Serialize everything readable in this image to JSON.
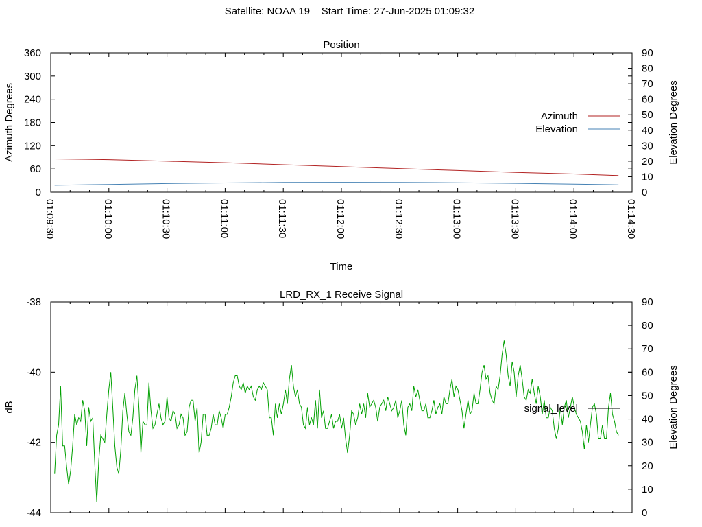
{
  "page_title": {
    "satellite": "Satellite: NOAA 19",
    "start_time": "Start Time: 27-Jun-2025 01:09:32"
  },
  "chart_data": [
    {
      "type": "line",
      "title": "Position",
      "xlabel": "Time",
      "ylabel": "Azimuth Degrees",
      "y2label": "Elevation Degrees",
      "xlim": [
        "01:09:30",
        "01:14:30"
      ],
      "ylim": [
        0,
        360
      ],
      "y2lim": [
        0,
        90
      ],
      "x_ticks": [
        "01:09:30",
        "01:10:00",
        "01:10:30",
        "01:11:00",
        "01:11:30",
        "01:12:00",
        "01:12:30",
        "01:13:00",
        "01:13:30",
        "01:14:00",
        "01:14:30"
      ],
      "y_ticks": [
        0,
        60,
        120,
        180,
        240,
        300,
        360
      ],
      "y2_ticks": [
        0,
        10,
        20,
        30,
        40,
        50,
        60,
        70,
        80,
        90
      ],
      "legend_position": "right",
      "grid": false,
      "series": [
        {
          "name": "Azimuth",
          "axis": "left",
          "color": "#b22222",
          "x": [
            "01:09:32",
            "01:10:00",
            "01:10:30",
            "01:11:00",
            "01:11:30",
            "01:12:00",
            "01:12:30",
            "01:13:00",
            "01:13:30",
            "01:14:00",
            "01:14:23"
          ],
          "y": [
            86,
            84,
            80,
            76,
            71,
            66,
            61,
            56,
            51,
            47,
            43
          ]
        },
        {
          "name": "Elevation",
          "axis": "right",
          "color": "#4682b4",
          "x": [
            "01:09:32",
            "01:10:00",
            "01:10:30",
            "01:11:00",
            "01:11:30",
            "01:12:00",
            "01:12:30",
            "01:13:00",
            "01:13:30",
            "01:14:00",
            "01:14:23"
          ],
          "y": [
            4.5,
            5,
            5.6,
            6,
            6.3,
            6.4,
            6.3,
            6.1,
            5.7,
            5.2,
            4.8
          ]
        }
      ]
    },
    {
      "type": "line",
      "title": "LRD_RX_1 Receive Signal",
      "ylabel": "dB",
      "y2label": "Elevation Degrees",
      "xlim": [
        "01:09:30",
        "01:14:30"
      ],
      "ylim": [
        -44,
        -38
      ],
      "y2lim": [
        0,
        90
      ],
      "y_ticks": [
        -44,
        -42,
        -40,
        -38
      ],
      "y2_ticks": [
        0,
        10,
        20,
        30,
        40,
        50,
        60,
        70,
        80,
        90
      ],
      "legend_position": "right",
      "grid": false,
      "series": [
        {
          "name": "signal_level",
          "axis": "left",
          "color": "#00a000",
          "legend_color": "#000000",
          "x_start": "01:09:32",
          "x_end": "01:14:23",
          "y": [
            -42.9,
            -41.8,
            -41.5,
            -40.4,
            -42.1,
            -42.1,
            -42.7,
            -43.2,
            -42.8,
            -42.1,
            -41.2,
            -41.5,
            -41.3,
            -41.4,
            -40.8,
            -41.1,
            -42.1,
            -41.0,
            -41.4,
            -41.3,
            -42.6,
            -43.7,
            -42.5,
            -41.8,
            -41.9,
            -42.0,
            -41.2,
            -40.5,
            -40.0,
            -41.0,
            -42.1,
            -42.7,
            -42.9,
            -42.2,
            -41.1,
            -40.6,
            -41.2,
            -41.7,
            -41.8,
            -41.3,
            -40.5,
            -40.1,
            -41.0,
            -42.3,
            -41.4,
            -41.5,
            -41.5,
            -40.3,
            -41.1,
            -41.6,
            -41.5,
            -41.2,
            -40.9,
            -41.3,
            -41.5,
            -41.4,
            -40.7,
            -41.3,
            -41.4,
            -41.1,
            -41.2,
            -41.6,
            -41.5,
            -41.2,
            -41.3,
            -41.8,
            -41.7,
            -41.0,
            -40.8,
            -40.8,
            -41.4,
            -41.0,
            -42.3,
            -42.0,
            -41.2,
            -41.2,
            -41.8,
            -41.8,
            -41.6,
            -41.2,
            -41.5,
            -41.5,
            -41.1,
            -41.3,
            -41.6,
            -41.2,
            -41.2,
            -41.0,
            -40.7,
            -40.3,
            -40.1,
            -40.1,
            -40.4,
            -40.5,
            -40.3,
            -40.6,
            -40.4,
            -40.5,
            -40.4,
            -40.7,
            -40.8,
            -40.5,
            -40.4,
            -40.5,
            -40.3,
            -40.4,
            -40.5,
            -41.3,
            -41.3,
            -41.8,
            -40.9,
            -41.3,
            -40.9,
            -41.2,
            -40.9,
            -40.5,
            -40.9,
            -40.2,
            -39.8,
            -40.4,
            -40.7,
            -40.5,
            -40.9,
            -41.0,
            -41.5,
            -41.6,
            -41.0,
            -41.5,
            -41.3,
            -41.5,
            -40.8,
            -41.6,
            -40.5,
            -41.3,
            -41.1,
            -41.6,
            -41.6,
            -41.4,
            -41.2,
            -41.6,
            -41.4,
            -41.4,
            -41.2,
            -41.6,
            -41.3,
            -41.9,
            -42.3,
            -41.8,
            -41.1,
            -41.2,
            -41.5,
            -41.3,
            -40.9,
            -41.2,
            -40.9,
            -41.3,
            -40.6,
            -41.0,
            -40.9,
            -40.8,
            -41.0,
            -41.4,
            -41.0,
            -40.9,
            -40.8,
            -41.1,
            -40.7,
            -40.9,
            -41.1,
            -41.0,
            -40.8,
            -41.3,
            -41.1,
            -40.8,
            -41.5,
            -41.8,
            -41.0,
            -40.9,
            -41.1,
            -40.4,
            -40.7,
            -40.5,
            -40.8,
            -41.1,
            -41.1,
            -40.9,
            -41.3,
            -41.3,
            -41.1,
            -40.8,
            -41.2,
            -41.0,
            -40.9,
            -41.2,
            -40.7,
            -40.9,
            -40.9,
            -40.5,
            -40.2,
            -40.7,
            -40.4,
            -40.5,
            -40.8,
            -41.1,
            -41.6,
            -41.2,
            -40.8,
            -41.2,
            -41.1,
            -40.6,
            -40.9,
            -40.9,
            -40.5,
            -40.0,
            -39.8,
            -40.2,
            -40.1,
            -40.6,
            -40.8,
            -40.9,
            -40.4,
            -40.5,
            -40.1,
            -39.5,
            -39.1,
            -39.5,
            -40.1,
            -40.4,
            -39.7,
            -40.0,
            -40.7,
            -40.1,
            -39.8,
            -40.2,
            -40.7,
            -40.8,
            -40.5,
            -40.6,
            -40.2,
            -40.6,
            -40.9,
            -40.4,
            -40.7,
            -41.2,
            -40.8,
            -41.3,
            -41.3,
            -41.0,
            -41.1,
            -41.6,
            -41.9,
            -41.6,
            -41.0,
            -41.5,
            -41.0,
            -40.8,
            -41.3,
            -41.0,
            -40.7,
            -41.0,
            -41.2,
            -41.3,
            -41.4,
            -41.7,
            -42.2,
            -41.5,
            -42.0,
            -41.5,
            -41.0,
            -40.9,
            -41.2,
            -41.9,
            -41.9,
            -41.5,
            -41.9,
            -41.9,
            -41.0,
            -40.6,
            -41.2,
            -41.4,
            -41.7,
            -41.8
          ]
        }
      ]
    }
  ]
}
